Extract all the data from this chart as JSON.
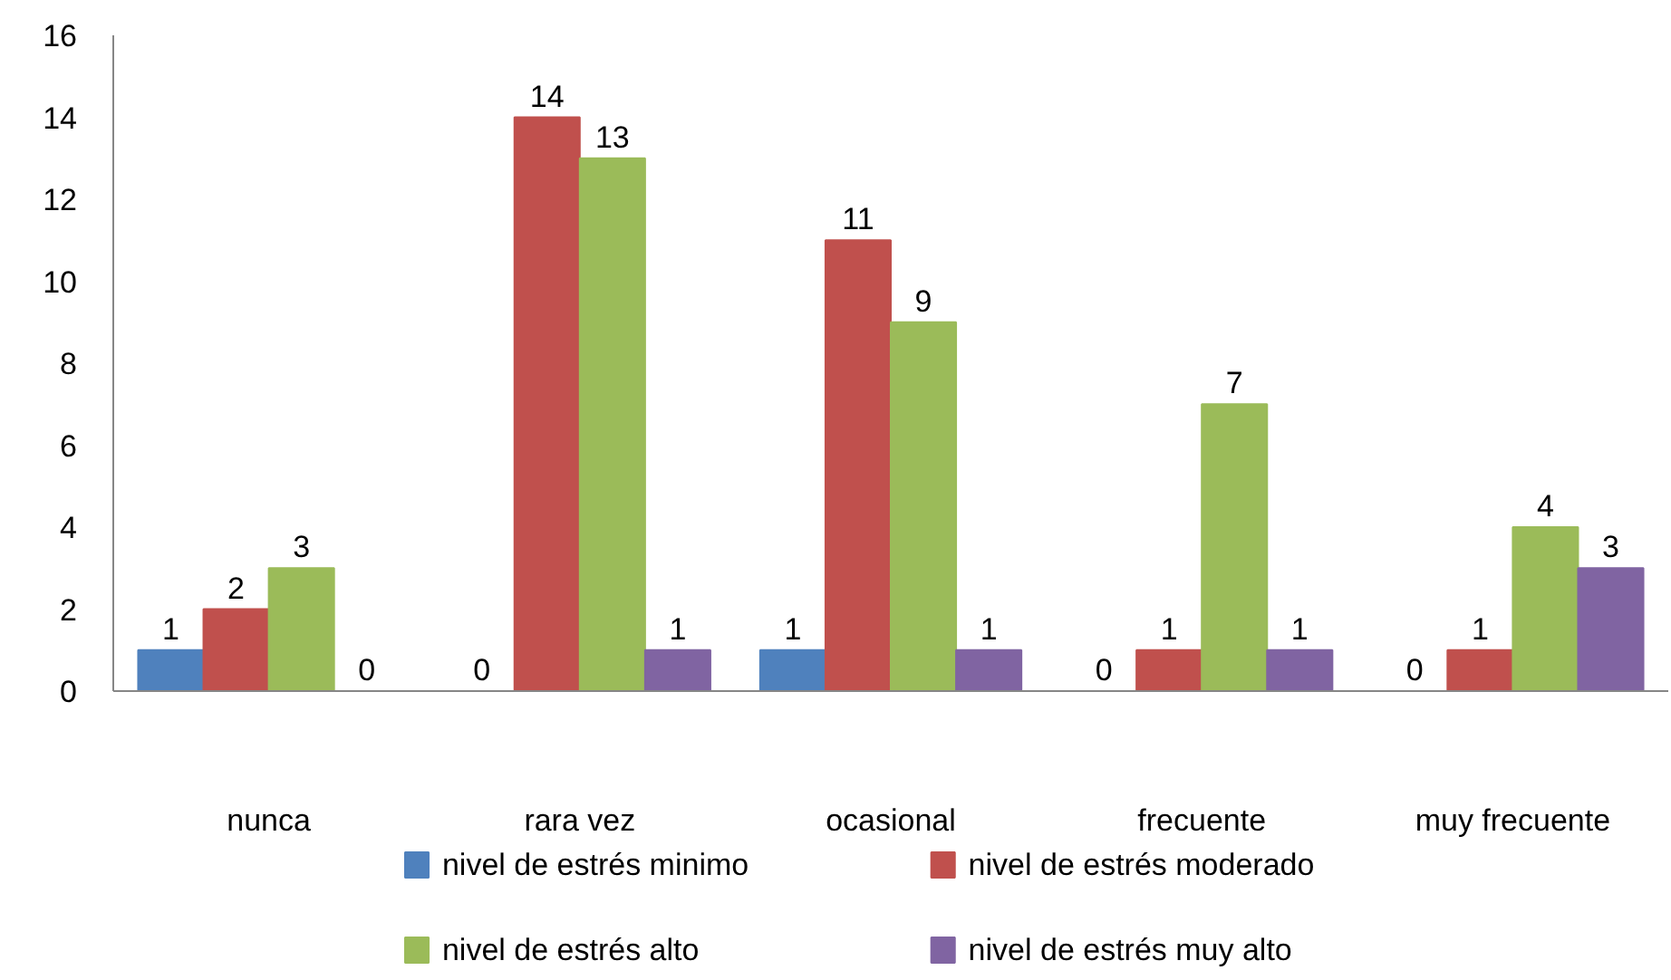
{
  "chart_data": {
    "type": "bar",
    "categories": [
      "nunca",
      "rara vez",
      "ocasional",
      "frecuente",
      "muy frecuente"
    ],
    "series": [
      {
        "name": "nivel de estrés  minimo",
        "color": "#4f81bd",
        "values": [
          1,
          0,
          1,
          0,
          0
        ]
      },
      {
        "name": "nivel de estrés  moderado",
        "color": "#c0504d",
        "values": [
          2,
          14,
          11,
          1,
          1
        ]
      },
      {
        "name": "nivel de estrés alto",
        "color": "#9bbb59",
        "values": [
          3,
          13,
          9,
          7,
          4
        ]
      },
      {
        "name": "nivel de estrés muy alto",
        "color": "#8064a2",
        "values": [
          0,
          1,
          1,
          1,
          3
        ]
      }
    ],
    "ylim": [
      0,
      16
    ],
    "yticks": [
      0,
      2,
      4,
      6,
      8,
      10,
      12,
      14,
      16
    ],
    "grid": false,
    "legend": "bottom",
    "data_labels": true
  }
}
